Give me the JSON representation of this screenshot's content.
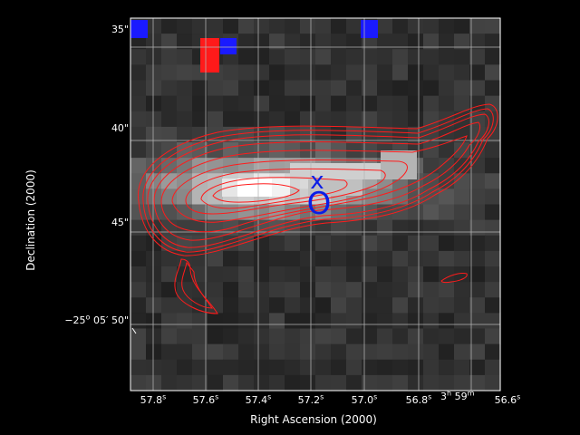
{
  "axes": {
    "x_label": "Right Ascension (2000)",
    "y_label": "Declination (2000)",
    "x_ticks": [
      {
        "value": "57.8",
        "unit": "s"
      },
      {
        "value": "57.6",
        "unit": "s"
      },
      {
        "value": "57.4",
        "unit": "s"
      },
      {
        "value": "57.2",
        "unit": "s"
      },
      {
        "value": "57.0",
        "unit": "s"
      },
      {
        "value": "56.8",
        "unit": "s"
      },
      {
        "value": "56.6",
        "unit": "s"
      }
    ],
    "x_extra_label": {
      "hours": "3",
      "minutes": "59",
      "h_unit": "h",
      "m_unit": "m"
    },
    "y_ticks": [
      {
        "text": "35\""
      },
      {
        "text": "40\""
      },
      {
        "text": "45\""
      },
      {
        "prefix": "−25",
        "deg": "o",
        "mid": " 05′ 50\""
      }
    ]
  },
  "markers": {
    "x_mark": "x",
    "o_mark": "O",
    "marker_color": "#0b1de6"
  },
  "colors": {
    "contour": "#ff1c1c",
    "grid": "#b4b4b4",
    "pixel_blue": "#1a1aff",
    "pixel_red": "#ff1a1a",
    "background": "#000000"
  }
}
